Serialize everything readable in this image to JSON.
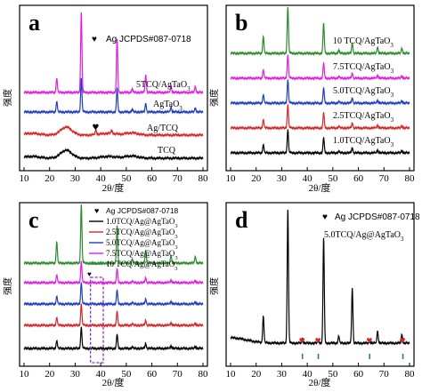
{
  "panels": [
    {
      "letter": "a",
      "xlabel": "2θ/度",
      "ylabel": "强度",
      "xticks": [
        "10",
        "20",
        "30",
        "40",
        "50",
        "60",
        "70",
        "80"
      ],
      "legend": "Ag JCPDS#087-0718",
      "series": [
        {
          "name": "TCQ",
          "color": "#000000",
          "kind": "tcq"
        },
        {
          "name": "Ag/TCQ",
          "color": "#d62728",
          "kind": "agtcq"
        },
        {
          "name": "AgTaO3",
          "color": "#1f3fbf",
          "kind": "agtao3"
        },
        {
          "name": "5TCQ/AgTaO3",
          "color": "#e020e0",
          "kind": "composite"
        }
      ],
      "ag_markers": [
        38
      ]
    },
    {
      "letter": "b",
      "xlabel": "2θ/度",
      "ylabel": "强度",
      "xticks": [
        "10",
        "20",
        "30",
        "40",
        "50",
        "60",
        "70",
        "80"
      ],
      "series": [
        {
          "name": "1.0TCQ/AgTaO3",
          "color": "#000000",
          "kind": "composite"
        },
        {
          "name": "2.5TCQ/AgTaO3",
          "color": "#d62728",
          "kind": "composite"
        },
        {
          "name": "5.0TCQ/AgTaO3",
          "color": "#1f3fbf",
          "kind": "composite"
        },
        {
          "name": "7.5TCQ/AgTaO3",
          "color": "#e020e0",
          "kind": "composite"
        },
        {
          "name": "10 TCQ/AgTaO3",
          "color": "#2e8b2e",
          "kind": "composite"
        }
      ]
    },
    {
      "letter": "c",
      "xlabel": "2θ/度",
      "ylabel": "强度",
      "xticks": [
        "10",
        "20",
        "30",
        "40",
        "50",
        "60",
        "70",
        "80"
      ],
      "legend_items": [
        {
          "name": "Ag JCPDS#087-0718",
          "color": "#000000",
          "marker": "heart"
        },
        {
          "name": "1.0TCQ/Ag@AgTaO3",
          "color": "#000000",
          "marker": "line"
        },
        {
          "name": "2.5TCQ/Ag@AgTaO3",
          "color": "#d62728",
          "marker": "line"
        },
        {
          "name": "5.0TCQ/Ag@AgTaO3",
          "color": "#1f3fbf",
          "marker": "line"
        },
        {
          "name": "7.5TCQ/Ag@AgTaO3",
          "color": "#e020e0",
          "marker": "line"
        },
        {
          "name": "10 TCQ/Ag@AgTaO3",
          "color": "#2e8b2e",
          "marker": "line"
        }
      ],
      "series": [
        {
          "name": "1.0TCQ/Ag@AgTaO3",
          "color": "#000000",
          "kind": "composite"
        },
        {
          "name": "2.5TCQ/Ag@AgTaO3",
          "color": "#d62728",
          "kind": "composite"
        },
        {
          "name": "5.0TCQ/Ag@AgTaO3",
          "color": "#1f3fbf",
          "kind": "composite"
        },
        {
          "name": "7.5TCQ/Ag@AgTaO3",
          "color": "#e020e0",
          "kind": "composite"
        },
        {
          "name": "10 TCQ/Ag@AgTaO3",
          "color": "#2e8b2e",
          "kind": "composite"
        }
      ],
      "ag_markers": [
        38
      ],
      "highlight_range": [
        36,
        41
      ]
    },
    {
      "letter": "d",
      "xlabel": "2θ/度",
      "ylabel": "强度",
      "xticks": [
        "10",
        "20",
        "30",
        "40",
        "50",
        "60",
        "70",
        "80"
      ],
      "legend": "Ag JCPDS#087-0718",
      "label": "5.0TCQ/Ag@AgTaO3",
      "series": [
        {
          "name": "5.0TCQ/Ag@AgTaO3",
          "color": "#000000",
          "kind": "single"
        }
      ],
      "ag_markers": [
        38.1,
        44.3,
        64.4,
        77.4
      ],
      "ref_ticks": [
        38.1,
        44.3,
        64.4,
        77.4
      ]
    }
  ],
  "chart_data": [
    {
      "type": "line",
      "panel": "a",
      "xlabel": "2θ/度",
      "ylabel": "强度",
      "xlim": [
        10,
        80
      ],
      "legend": "Ag JCPDS#087-0718",
      "series": [
        {
          "name": "TCQ",
          "peaks_2theta": [
            26.5
          ]
        },
        {
          "name": "Ag/TCQ",
          "peaks_2theta": [
            26.5,
            38.1,
            44.3
          ]
        },
        {
          "name": "AgTaO3",
          "peaks_2theta": [
            22.8,
            32.4,
            46.4,
            52.3,
            57.6,
            67.5,
            77.0
          ]
        },
        {
          "name": "5TCQ/AgTaO3",
          "peaks_2theta": [
            22.8,
            32.4,
            46.4,
            52.3,
            57.6,
            67.5,
            77.0
          ]
        }
      ]
    },
    {
      "type": "line",
      "panel": "b",
      "xlabel": "2θ/度",
      "ylabel": "强度",
      "xlim": [
        10,
        80
      ],
      "series": [
        {
          "name": "1.0TCQ/AgTaO3",
          "peaks_2theta": [
            22.8,
            32.4,
            46.4,
            52.3,
            57.6,
            67.5,
            77.0
          ]
        },
        {
          "name": "2.5TCQ/AgTaO3",
          "peaks_2theta": [
            22.8,
            32.4,
            46.4,
            52.3,
            57.6,
            67.5,
            77.0
          ]
        },
        {
          "name": "5.0TCQ/AgTaO3",
          "peaks_2theta": [
            22.8,
            32.4,
            46.4,
            52.3,
            57.6,
            67.5,
            77.0
          ]
        },
        {
          "name": "7.5TCQ/AgTaO3",
          "peaks_2theta": [
            22.8,
            32.4,
            46.4,
            52.3,
            57.6,
            67.5,
            77.0
          ]
        },
        {
          "name": "10 TCQ/AgTaO3",
          "peaks_2theta": [
            22.8,
            32.4,
            46.4,
            52.3,
            57.6,
            67.5,
            77.0
          ]
        }
      ]
    },
    {
      "type": "line",
      "panel": "c",
      "xlabel": "2θ/度",
      "ylabel": "强度",
      "xlim": [
        10,
        80
      ],
      "legend": "Ag JCPDS#087-0718",
      "series": [
        {
          "name": "1.0TCQ/Ag@AgTaO3",
          "peaks_2theta": [
            22.8,
            32.4,
            38.1,
            46.4,
            52.3,
            57.6,
            67.5,
            77.0
          ]
        },
        {
          "name": "2.5TCQ/Ag@AgTaO3",
          "peaks_2theta": [
            22.8,
            32.4,
            38.1,
            46.4,
            52.3,
            57.6,
            67.5,
            77.0
          ]
        },
        {
          "name": "5.0TCQ/Ag@AgTaO3",
          "peaks_2theta": [
            22.8,
            32.4,
            38.1,
            46.4,
            52.3,
            57.6,
            67.5,
            77.0
          ]
        },
        {
          "name": "7.5TCQ/Ag@AgTaO3",
          "peaks_2theta": [
            22.8,
            32.4,
            38.1,
            46.4,
            52.3,
            57.6,
            67.5,
            77.0
          ]
        },
        {
          "name": "10 TCQ/Ag@AgTaO3",
          "peaks_2theta": [
            22.8,
            32.4,
            38.1,
            46.4,
            52.3,
            57.6,
            67.5,
            77.0
          ]
        }
      ]
    },
    {
      "type": "line",
      "panel": "d",
      "xlabel": "2θ/度",
      "ylabel": "强度",
      "xlim": [
        10,
        80
      ],
      "legend": "Ag JCPDS#087-0718",
      "series": [
        {
          "name": "5.0TCQ/Ag@AgTaO3",
          "peaks_2theta": [
            22.8,
            32.4,
            38.1,
            44.3,
            46.4,
            52.3,
            57.6,
            64.4,
            67.5,
            77.0
          ]
        }
      ]
    }
  ]
}
